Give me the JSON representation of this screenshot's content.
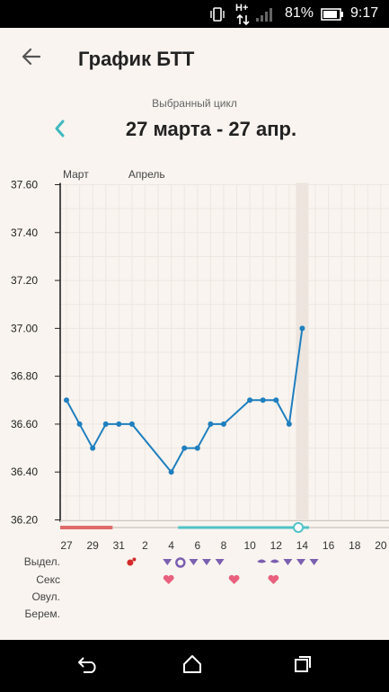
{
  "status_bar": {
    "battery_percent": "81%",
    "time": "9:17",
    "network_label": "H+",
    "icons": [
      "vibrate-icon",
      "network-h-plus-icon",
      "signal-icon",
      "battery-icon"
    ]
  },
  "header": {
    "title": "График БТТ",
    "back_icon": "arrow-left-icon"
  },
  "cycle": {
    "label": "Выбранный цикл",
    "range": "27 марта - 27 апр.",
    "prev_icon": "chevron-left-icon"
  },
  "colors": {
    "line": "#1f7fbf",
    "menstruation_bar": "#e06a6a",
    "fertile_bar": "#4fc3c8",
    "discharge": "#7b5fb0",
    "heart": "#e8607d",
    "accent": "#3fb8bf"
  },
  "chart_data": {
    "type": "line",
    "month_labels": [
      {
        "label": "Март",
        "day": 1
      },
      {
        "label": "Апрель",
        "day": 6
      }
    ],
    "y_ticks": [
      "37.60",
      "37.40",
      "37.20",
      "37.00",
      "36.80",
      "36.60",
      "36.40",
      "36.20"
    ],
    "ylim": [
      36.2,
      37.6
    ],
    "x_ticks": [
      "27",
      "29",
      "31",
      "2",
      "4",
      "6",
      "8",
      "10",
      "12",
      "14",
      "16",
      "18",
      "20"
    ],
    "x_tick_days": [
      1,
      3,
      5,
      7,
      9,
      11,
      13,
      15,
      17,
      19,
      21,
      23,
      25
    ],
    "xlim": [
      1,
      25
    ],
    "highlight_day": 19,
    "series": [
      {
        "points": [
          {
            "day": 1,
            "value": 36.7
          },
          {
            "day": 2,
            "value": 36.6
          },
          {
            "day": 3,
            "value": 36.5
          },
          {
            "day": 4,
            "value": 36.6
          },
          {
            "day": 5,
            "value": 36.6
          },
          {
            "day": 6,
            "value": 36.6
          },
          {
            "day": 9,
            "value": 36.4
          },
          {
            "day": 10,
            "value": 36.5
          },
          {
            "day": 11,
            "value": 36.5
          },
          {
            "day": 12,
            "value": 36.6
          },
          {
            "day": 13,
            "value": 36.6
          },
          {
            "day": 15,
            "value": 36.7
          },
          {
            "day": 16,
            "value": 36.7
          },
          {
            "day": 17,
            "value": 36.7
          },
          {
            "day": 18,
            "value": 36.6
          },
          {
            "day": 19,
            "value": 37.0
          }
        ]
      }
    ],
    "period_bars": [
      {
        "name": "menstruation",
        "from_day": 1,
        "to_day": 5
      },
      {
        "name": "fertile",
        "from_day": 10,
        "to_day": 20,
        "marker_day": 18.7
      }
    ],
    "rows": [
      {
        "label": "Выдел.",
        "marks": [
          {
            "day": 6,
            "kind": "blood"
          },
          {
            "day": 8.7,
            "kind": "drop"
          },
          {
            "day": 9.7,
            "kind": "ring"
          },
          {
            "day": 10.7,
            "kind": "drop"
          },
          {
            "day": 11.7,
            "kind": "drop"
          },
          {
            "day": 12.7,
            "kind": "drop"
          },
          {
            "day": 15.9,
            "kind": "lens"
          },
          {
            "day": 16.9,
            "kind": "lens"
          },
          {
            "day": 17.9,
            "kind": "drop"
          },
          {
            "day": 18.9,
            "kind": "drop"
          },
          {
            "day": 19.9,
            "kind": "drop"
          }
        ]
      },
      {
        "label": "Секс",
        "marks": [
          {
            "day": 8.8,
            "kind": "heart"
          },
          {
            "day": 13.8,
            "kind": "heart"
          },
          {
            "day": 16.8,
            "kind": "heart"
          }
        ]
      },
      {
        "label": "Овул.",
        "marks": []
      },
      {
        "label": "Берем.",
        "marks": []
      }
    ]
  },
  "nav_bar": {
    "buttons": [
      "back-nav-icon",
      "home-nav-icon",
      "recents-nav-icon"
    ]
  }
}
